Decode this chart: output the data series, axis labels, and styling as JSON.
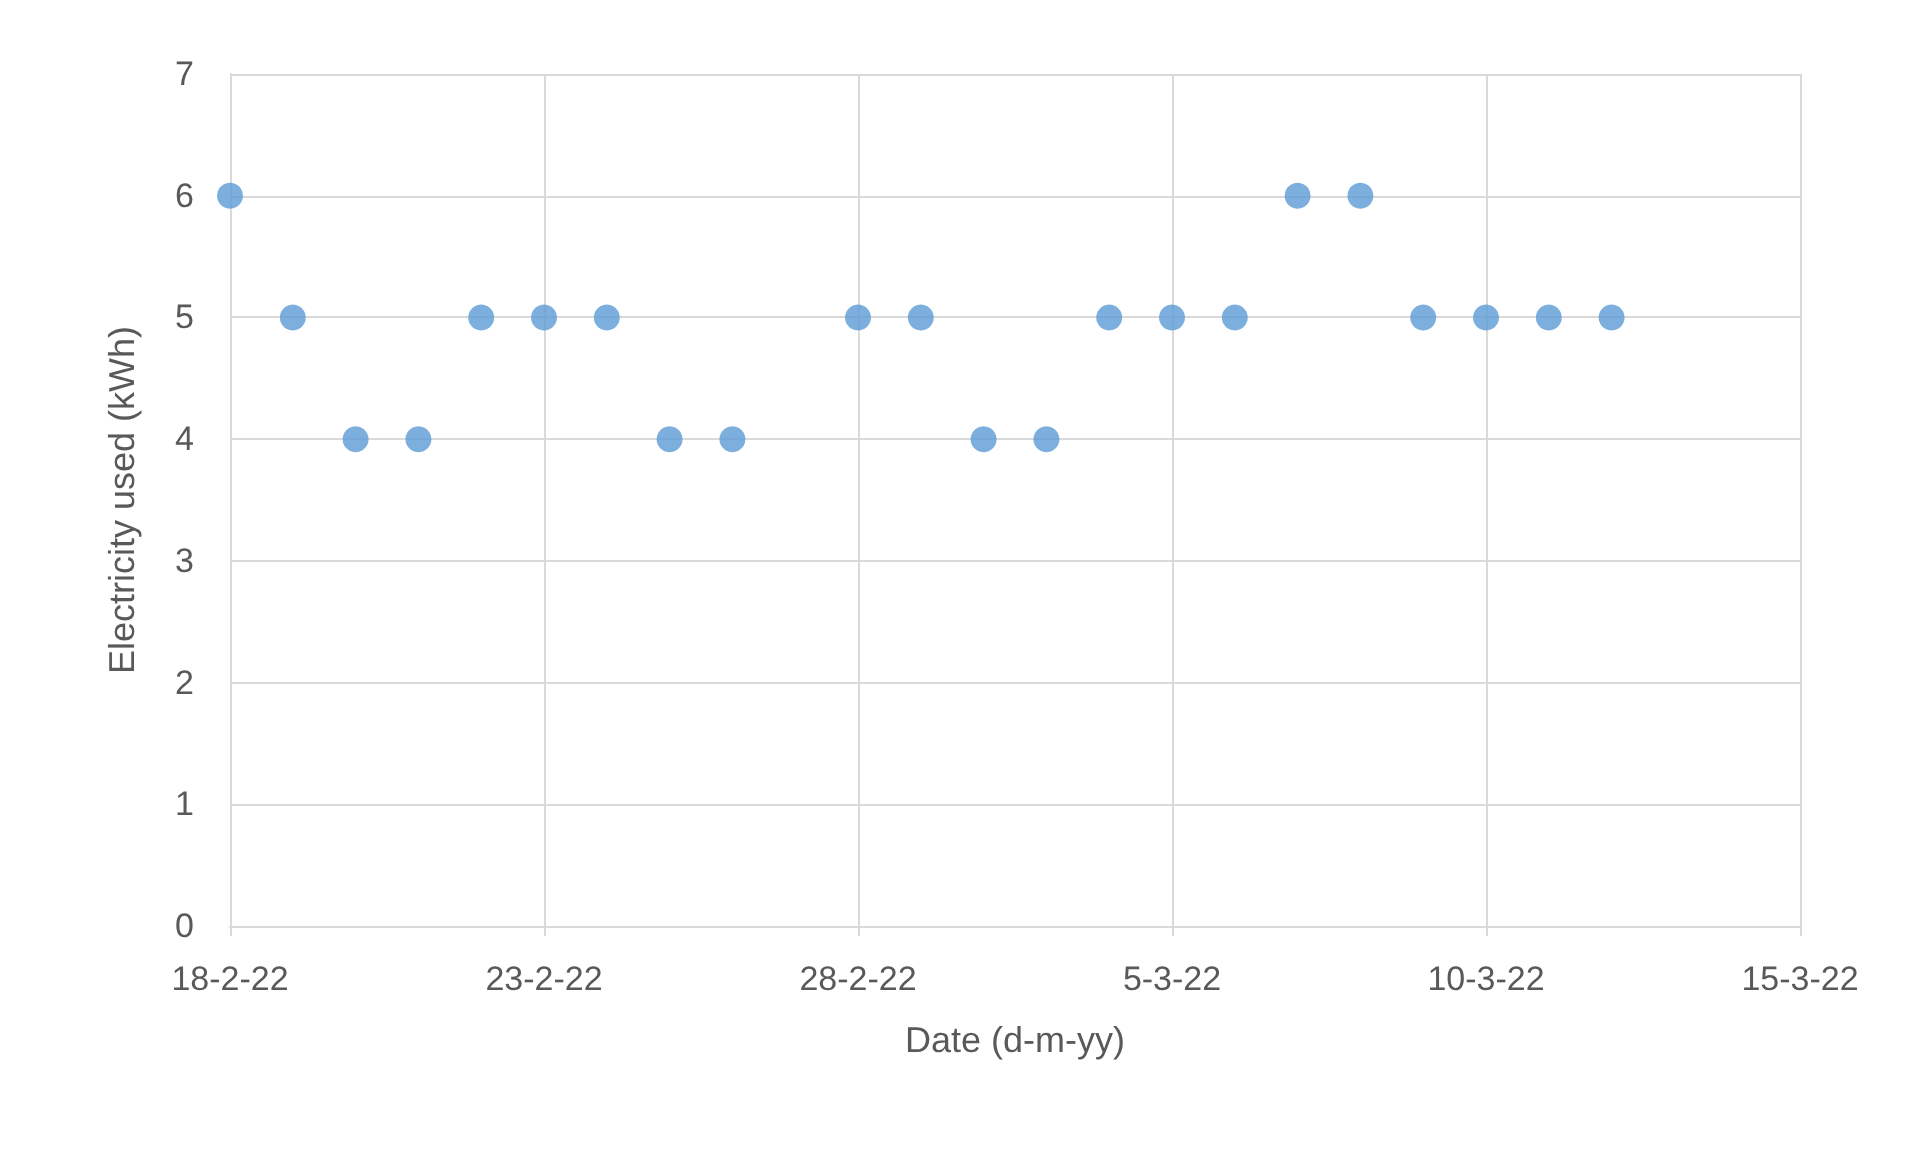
{
  "chart_data": {
    "type": "scatter",
    "xlabel": "Date (d-m-yy)",
    "ylabel": "Electricity used (kWh)",
    "x": [
      "--02-18",
      "--02-19",
      "--02-20",
      "--02-21",
      "--02-22",
      "--02-23",
      "--02-24",
      "--02-25",
      "--02-26",
      "--02-28",
      "--03-01",
      "--03-02",
      "--03-03",
      "--03-04",
      "--03-05",
      "--03-06",
      "--03-07",
      "--03-08",
      "--03-09",
      "--03-10",
      "--03-11",
      "--03-12"
    ],
    "values": [
      6,
      5,
      4,
      4,
      5,
      5,
      5,
      4,
      4,
      5,
      5,
      4,
      4,
      5,
      5,
      5,
      6,
      6,
      5,
      5,
      5,
      5
    ],
    "color": "#5b9bd5",
    "marker": "circle",
    "xlim": [
      "--02-18",
      "--03-15"
    ],
    "xticks": [
      {
        "value": "--02-18",
        "label": "18-2-22"
      },
      {
        "value": "--02-23",
        "label": "23-2-22"
      },
      {
        "value": "--02-28",
        "label": "28-2-22"
      },
      {
        "value": "--03-05",
        "label": "5-3-22"
      },
      {
        "value": "--03-10",
        "label": "10-3-22"
      },
      {
        "value": "--03-15",
        "label": "15-3-22"
      }
    ],
    "ylim": [
      0,
      7
    ],
    "yticks": [
      0,
      1,
      2,
      3,
      4,
      5,
      6,
      7
    ],
    "grid": true
  }
}
